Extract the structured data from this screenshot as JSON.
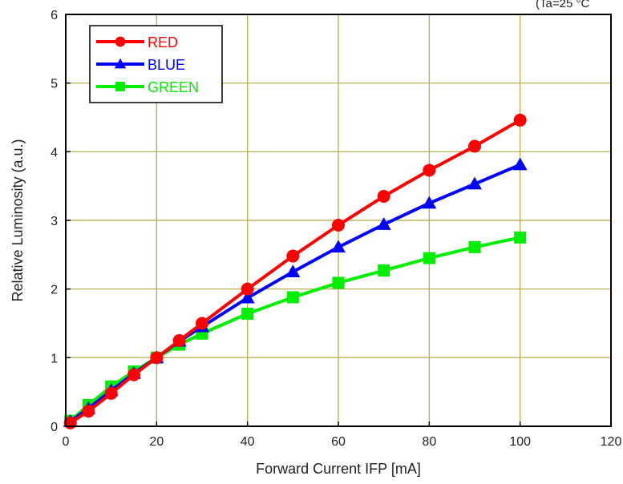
{
  "chart_data": {
    "type": "line",
    "title": "",
    "note": "(Ta=25 °C",
    "xlabel": "Forward Current IFP [mA]",
    "ylabel": "Relative Luminosity (a.u.)",
    "xlim": [
      0,
      120
    ],
    "ylim": [
      0,
      6
    ],
    "x_ticks": [
      0,
      20,
      40,
      60,
      80,
      100,
      120
    ],
    "y_ticks": [
      0,
      1,
      2,
      3,
      4,
      5,
      6
    ],
    "grid": true,
    "legend_position": "top-left",
    "series": [
      {
        "name": "RED",
        "color": "#ff0000",
        "marker": "circle",
        "x": [
          1,
          5,
          10,
          15,
          20,
          25,
          30,
          40,
          50,
          60,
          70,
          80,
          90,
          100
        ],
        "y": [
          0.05,
          0.22,
          0.48,
          0.75,
          1.0,
          1.25,
          1.5,
          2.0,
          2.48,
          2.93,
          3.35,
          3.73,
          4.08,
          4.46
        ]
      },
      {
        "name": "BLUE",
        "color": "#0000ff",
        "marker": "triangle",
        "x": [
          1,
          5,
          10,
          15,
          20,
          25,
          30,
          40,
          50,
          60,
          70,
          80,
          90,
          100
        ],
        "y": [
          0.07,
          0.26,
          0.52,
          0.77,
          1.0,
          1.24,
          1.45,
          1.87,
          2.25,
          2.61,
          2.94,
          3.25,
          3.53,
          3.81
        ]
      },
      {
        "name": "GREEN",
        "color": "#00ee00",
        "marker": "square",
        "x": [
          1,
          5,
          10,
          15,
          20,
          25,
          30,
          40,
          50,
          60,
          70,
          80,
          90,
          100
        ],
        "y": [
          0.08,
          0.31,
          0.58,
          0.8,
          1.0,
          1.19,
          1.35,
          1.64,
          1.88,
          2.09,
          2.27,
          2.45,
          2.61,
          2.75
        ]
      }
    ]
  }
}
